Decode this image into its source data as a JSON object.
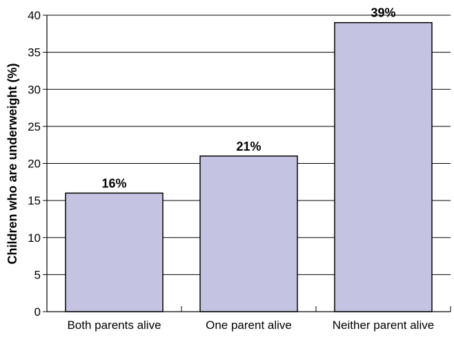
{
  "chart_data": {
    "type": "bar",
    "title": "",
    "xlabel": "",
    "ylabel": "Children who are underweight (%)",
    "categories": [
      "Both parents alive",
      "One parent alive",
      "Neither parent alive"
    ],
    "values": [
      16,
      21,
      39
    ],
    "data_labels": [
      "16%",
      "21%",
      "39%"
    ],
    "ylim": [
      0,
      40
    ],
    "yticks": [
      0,
      5,
      10,
      15,
      20,
      25,
      30,
      35,
      40
    ],
    "grid": true,
    "legend": "none",
    "colors": {
      "bar_fill": "#c4c4e2",
      "bar_stroke": "#000000",
      "grid": "#000000"
    }
  }
}
